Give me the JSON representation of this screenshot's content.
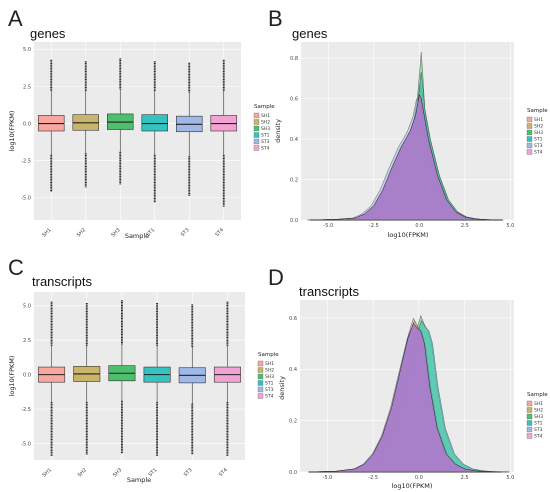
{
  "panels": [
    {
      "label": "A",
      "title": "genes"
    },
    {
      "label": "B",
      "title": "genes"
    },
    {
      "label": "C",
      "title": "transcripts"
    },
    {
      "label": "D",
      "title": "transcripts"
    }
  ],
  "colors": {
    "SH1": "#f8a6a0",
    "SH2": "#c8b46a",
    "SH3": "#4fbf6f",
    "ST1": "#34c3c0",
    "ST3": "#9fb8e8",
    "ST4": "#f2a3d3",
    "density_fill": "#a67bc9",
    "panel_bg": "#ebebeb",
    "grid": "#ffffff"
  },
  "chart_data": [
    {
      "panel": "A",
      "type": "box",
      "title": "genes",
      "xlabel": "Sample",
      "ylabel": "log10(FPKM)",
      "categories": [
        "SH1",
        "SH2",
        "SH3",
        "ST1",
        "ST3",
        "ST4"
      ],
      "yticks": [
        "5.0",
        "2.5",
        "0.0",
        "-2.5",
        "-5.0"
      ],
      "ylim": [
        -6.5,
        5.5
      ],
      "legend_title": "Sample",
      "legend": [
        "SH1",
        "SH2",
        "SH3",
        "ST1",
        "ST3",
        "ST4"
      ],
      "legend_position": "right",
      "boxes": [
        {
          "sample": "SH1",
          "q1": -0.5,
          "median": 0.0,
          "q3": 0.55,
          "whisker_low": -2.1,
          "whisker_high": 2.2,
          "out_low": -4.6,
          "out_high": 4.3
        },
        {
          "sample": "SH2",
          "q1": -0.45,
          "median": 0.05,
          "q3": 0.6,
          "whisker_low": -2.0,
          "whisker_high": 2.2,
          "out_low": -4.3,
          "out_high": 4.2
        },
        {
          "sample": "SH3",
          "q1": -0.4,
          "median": 0.1,
          "q3": 0.65,
          "whisker_low": -1.9,
          "whisker_high": 2.3,
          "out_low": -4.1,
          "out_high": 4.4
        },
        {
          "sample": "ST1",
          "q1": -0.5,
          "median": 0.0,
          "q3": 0.6,
          "whisker_low": -2.1,
          "whisker_high": 2.2,
          "out_low": -5.3,
          "out_high": 4.2
        },
        {
          "sample": "ST3",
          "q1": -0.55,
          "median": -0.05,
          "q3": 0.5,
          "whisker_low": -2.2,
          "whisker_high": 2.1,
          "out_low": -4.9,
          "out_high": 4.1
        },
        {
          "sample": "ST4",
          "q1": -0.5,
          "median": 0.0,
          "q3": 0.55,
          "whisker_low": -2.1,
          "whisker_high": 2.2,
          "out_low": -5.6,
          "out_high": 4.3
        }
      ]
    },
    {
      "panel": "B",
      "type": "density",
      "title": "genes",
      "xlabel": "log10(FPKM)",
      "ylabel": "density",
      "xticks": [
        "-5.0",
        "-2.5",
        "0.0",
        "2.5",
        "5.0"
      ],
      "xlim": [
        -6.5,
        5.2
      ],
      "yticks": [
        "0.0",
        "0.2",
        "0.4",
        "0.6",
        "0.8"
      ],
      "ylim": [
        0,
        0.88
      ],
      "legend_title": "Sample",
      "legend": [
        "SH1",
        "SH2",
        "SH3",
        "ST1",
        "ST3",
        "ST4"
      ],
      "legend_position": "right",
      "curve": {
        "x": [
          -6.0,
          -4.5,
          -3.5,
          -3.0,
          -2.5,
          -2.0,
          -1.5,
          -1.0,
          -0.5,
          -0.2,
          0.0,
          0.1,
          0.2,
          0.5,
          1.0,
          1.5,
          2.0,
          2.5,
          3.0,
          3.5,
          4.5
        ],
        "y": [
          0.0,
          0.003,
          0.01,
          0.03,
          0.07,
          0.15,
          0.26,
          0.36,
          0.44,
          0.52,
          0.62,
          0.6,
          0.55,
          0.4,
          0.22,
          0.1,
          0.04,
          0.015,
          0.006,
          0.002,
          0.0
        ]
      },
      "peaks": [
        {
          "sample": "SH1",
          "x": 0.0,
          "y": 0.62
        },
        {
          "sample": "SH2",
          "x": 0.05,
          "y": 0.68
        },
        {
          "sample": "SH3",
          "x": 0.1,
          "y": 0.83
        },
        {
          "sample": "ST1",
          "x": 0.1,
          "y": 0.73
        },
        {
          "sample": "ST3",
          "x": -0.15,
          "y": 0.6
        },
        {
          "sample": "ST4",
          "x": 0.0,
          "y": 0.62
        }
      ]
    },
    {
      "panel": "C",
      "type": "box",
      "title": "transcripts",
      "xlabel": "Sample",
      "ylabel": "log10(FPKM)",
      "categories": [
        "SH1",
        "SH2",
        "SH3",
        "ST1",
        "ST3",
        "ST4"
      ],
      "yticks": [
        "5.0",
        "2.5",
        "0.0",
        "-2.5",
        "-5.0"
      ],
      "ylim": [
        -6.2,
        6.0
      ],
      "legend_title": "Sample",
      "legend": [
        "SH1",
        "SH2",
        "SH3",
        "ST1",
        "ST3",
        "ST4"
      ],
      "legend_position": "right",
      "boxes": [
        {
          "sample": "SH1",
          "q1": -0.55,
          "median": 0.0,
          "q3": 0.55,
          "whisker_low": -2.0,
          "whisker_high": 2.1,
          "out_low": -5.9,
          "out_high": 5.3
        },
        {
          "sample": "SH2",
          "q1": -0.5,
          "median": 0.05,
          "q3": 0.6,
          "whisker_low": -2.0,
          "whisker_high": 2.1,
          "out_low": -5.8,
          "out_high": 5.2
        },
        {
          "sample": "SH3",
          "q1": -0.45,
          "median": 0.1,
          "q3": 0.65,
          "whisker_low": -1.9,
          "whisker_high": 2.2,
          "out_low": -5.7,
          "out_high": 5.4
        },
        {
          "sample": "ST1",
          "q1": -0.55,
          "median": 0.0,
          "q3": 0.55,
          "whisker_low": -2.0,
          "whisker_high": 2.1,
          "out_low": -5.9,
          "out_high": 5.2
        },
        {
          "sample": "ST3",
          "q1": -0.6,
          "median": -0.05,
          "q3": 0.5,
          "whisker_low": -2.1,
          "whisker_high": 2.0,
          "out_low": -5.8,
          "out_high": 5.1
        },
        {
          "sample": "ST4",
          "q1": -0.55,
          "median": 0.0,
          "q3": 0.55,
          "whisker_low": -2.0,
          "whisker_high": 2.1,
          "out_low": -5.9,
          "out_high": 5.3
        }
      ]
    },
    {
      "panel": "D",
      "type": "density",
      "title": "transcripts",
      "xlabel": "log10(FPKM)",
      "ylabel": "density",
      "xticks": [
        "-5.0",
        "-2.5",
        "0.0",
        "2.5",
        "5.0"
      ],
      "xlim": [
        -6.5,
        5.2
      ],
      "yticks": [
        "0.0",
        "0.2",
        "0.4",
        "0.6"
      ],
      "ylim": [
        0,
        0.67
      ],
      "legend_title": "Sample",
      "legend": [
        "SH1",
        "SH2",
        "SH3",
        "ST1",
        "ST3",
        "ST4"
      ],
      "legend_position": "right",
      "curve": {
        "x": [
          -6.0,
          -4.5,
          -3.5,
          -3.0,
          -2.5,
          -2.0,
          -1.5,
          -1.0,
          -0.6,
          -0.3,
          -0.1,
          0.1,
          0.3,
          0.6,
          1.0,
          1.5,
          2.0,
          2.5,
          3.0,
          3.5,
          4.5
        ],
        "y": [
          0.0,
          0.003,
          0.012,
          0.03,
          0.07,
          0.14,
          0.25,
          0.4,
          0.52,
          0.58,
          0.56,
          0.55,
          0.5,
          0.33,
          0.17,
          0.07,
          0.03,
          0.012,
          0.005,
          0.002,
          0.0
        ]
      },
      "peaks": [
        {
          "sample": "SH1",
          "x": -0.3,
          "y": 0.6
        },
        {
          "sample": "SH2",
          "x": -0.25,
          "y": 0.59
        },
        {
          "sample": "SH3",
          "x": 0.1,
          "y": 0.61
        },
        {
          "sample": "ST1",
          "x": 0.15,
          "y": 0.59
        },
        {
          "sample": "ST3",
          "x": -0.35,
          "y": 0.57
        },
        {
          "sample": "ST4",
          "x": -0.3,
          "y": 0.58
        }
      ]
    }
  ]
}
